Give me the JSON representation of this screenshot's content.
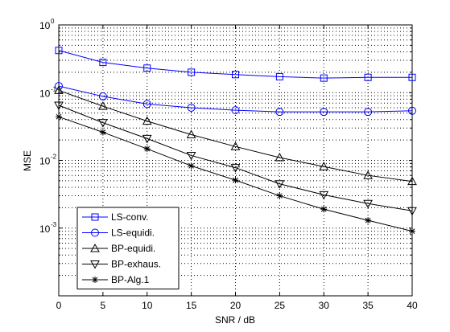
{
  "chart_data": {
    "type": "line",
    "title": "",
    "xlabel": "SNR / dB",
    "ylabel": "MSE",
    "x": [
      0,
      5,
      10,
      15,
      20,
      25,
      30,
      35,
      40
    ],
    "xlim": [
      0,
      40
    ],
    "xticks": [
      0,
      5,
      10,
      15,
      20,
      25,
      30,
      35,
      40
    ],
    "yscale": "log",
    "ylim": [
      0.0001,
      1
    ],
    "yticks": [
      {
        "value": 1,
        "base": "10",
        "exp": "0"
      },
      {
        "value": 0.1,
        "base": "10",
        "exp": "-1"
      },
      {
        "value": 0.01,
        "base": "10",
        "exp": "-2"
      },
      {
        "value": 0.001,
        "base": "10",
        "exp": "-3"
      }
    ],
    "grid": true,
    "grid_style": "dotted",
    "legend_position": "bottom-left",
    "series": [
      {
        "name": "LS-conv.",
        "marker": "square",
        "color": "#0000ff",
        "values": [
          0.42,
          0.28,
          0.23,
          0.2,
          0.185,
          0.172,
          0.164,
          0.168,
          0.168
        ]
      },
      {
        "name": "LS-equidi.",
        "marker": "circle",
        "color": "#0000ff",
        "values": [
          0.125,
          0.088,
          0.068,
          0.06,
          0.055,
          0.052,
          0.052,
          0.052,
          0.054
        ]
      },
      {
        "name": "BP-equidi.",
        "marker": "triangle-up",
        "color": "#000000",
        "values": [
          0.108,
          0.063,
          0.038,
          0.024,
          0.016,
          0.011,
          0.0081,
          0.006,
          0.0049
        ]
      },
      {
        "name": "BP-exhaus.",
        "marker": "triangle-down",
        "color": "#000000",
        "values": [
          0.065,
          0.036,
          0.021,
          0.0118,
          0.0078,
          0.0045,
          0.0031,
          0.0023,
          0.0018
        ]
      },
      {
        "name": "BP-Alg.1",
        "marker": "asterisk",
        "color": "#000000",
        "values": [
          0.044,
          0.026,
          0.0148,
          0.0083,
          0.0051,
          0.003,
          0.0019,
          0.0013,
          0.0009
        ]
      }
    ]
  }
}
